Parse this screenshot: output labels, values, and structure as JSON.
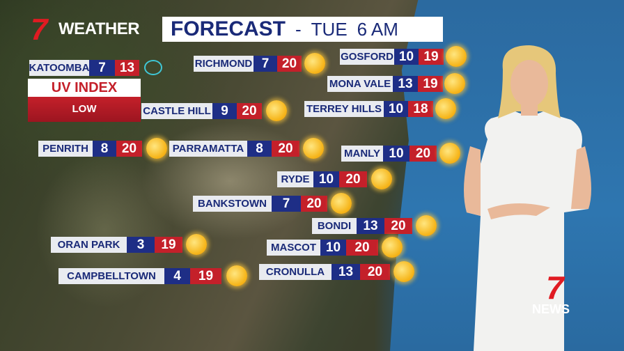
{
  "brand": {
    "logo": "7",
    "name": "WEATHER",
    "news_logo": "7",
    "news_text": "NEWS"
  },
  "header": {
    "title": "FORECAST",
    "separator": "-",
    "day": "TUE",
    "time": "6 AM"
  },
  "uv": {
    "label": "UV INDEX",
    "level": "LOW"
  },
  "colors": {
    "min": "#1e2e86",
    "max": "#c4202a",
    "label_text": "#1a2a78"
  },
  "locations": [
    {
      "name": "KATOOMBA",
      "min": "7",
      "max": "13",
      "icon": "cloud-icon"
    },
    {
      "name": "RICHMOND",
      "min": "7",
      "max": "20",
      "icon": "sun-icon"
    },
    {
      "name": "GOSFORD",
      "min": "10",
      "max": "19",
      "icon": "sun-icon"
    },
    {
      "name": "MONA VALE",
      "min": "13",
      "max": "19",
      "icon": "sun-icon"
    },
    {
      "name": "TERREY HILLS",
      "min": "10",
      "max": "18",
      "icon": "sun-icon"
    },
    {
      "name": "CASTLE HILL",
      "min": "9",
      "max": "20",
      "icon": "sun-icon"
    },
    {
      "name": "PENRITH",
      "min": "8",
      "max": "20",
      "icon": "sun-icon"
    },
    {
      "name": "PARRAMATTA",
      "min": "8",
      "max": "20",
      "icon": "sun-icon"
    },
    {
      "name": "MANLY",
      "min": "10",
      "max": "20",
      "icon": "sun-icon"
    },
    {
      "name": "RYDE",
      "min": "10",
      "max": "20",
      "icon": "sun-icon"
    },
    {
      "name": "BANKSTOWN",
      "min": "7",
      "max": "20",
      "icon": "sun-icon"
    },
    {
      "name": "BONDI",
      "min": "13",
      "max": "20",
      "icon": "sun-icon"
    },
    {
      "name": "ORAN PARK",
      "min": "3",
      "max": "19",
      "icon": "sun-icon"
    },
    {
      "name": "MASCOT",
      "min": "10",
      "max": "20",
      "icon": "sun-icon"
    },
    {
      "name": "CRONULLA",
      "min": "13",
      "max": "20",
      "icon": "sun-icon"
    },
    {
      "name": "CAMPBELLTOWN",
      "min": "4",
      "max": "19",
      "icon": "sun-icon"
    }
  ]
}
